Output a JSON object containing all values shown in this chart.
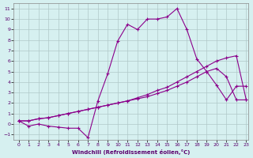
{
  "xlabel": "Windchill (Refroidissement éolien,°C)",
  "bg_color": "#d6f0f0",
  "grid_color": "#b0c8c8",
  "line_color": "#8b008b",
  "xlim": [
    -0.5,
    23.2
  ],
  "ylim": [
    -1.5,
    11.5
  ],
  "xticks": [
    0,
    1,
    2,
    3,
    4,
    5,
    6,
    7,
    8,
    9,
    10,
    11,
    12,
    13,
    14,
    15,
    16,
    17,
    18,
    19,
    20,
    21,
    22,
    23
  ],
  "yticks": [
    -1,
    0,
    1,
    2,
    3,
    4,
    5,
    6,
    7,
    8,
    9,
    10,
    11
  ],
  "line1_x": [
    0,
    1,
    2,
    3,
    4,
    5,
    6,
    7,
    8,
    9,
    10,
    11,
    12,
    13,
    14,
    15,
    16,
    17,
    18,
    19,
    20,
    21,
    22,
    23
  ],
  "line1_y": [
    0.3,
    -0.2,
    0.0,
    -0.2,
    -0.3,
    -0.4,
    -0.4,
    -1.3,
    2.2,
    4.8,
    7.9,
    9.5,
    9.0,
    10.0,
    10.0,
    10.2,
    11.0,
    9.0,
    6.2,
    5.0,
    3.7,
    2.3,
    3.6,
    3.6
  ],
  "line2_x": [
    0,
    1,
    2,
    3,
    4,
    5,
    6,
    7,
    8,
    9,
    10,
    11,
    12,
    13,
    14,
    15,
    16,
    17,
    18,
    19,
    20,
    21,
    22,
    23
  ],
  "line2_y": [
    0.3,
    0.3,
    0.5,
    0.6,
    0.8,
    1.0,
    1.2,
    1.4,
    1.6,
    1.8,
    2.0,
    2.2,
    2.5,
    2.8,
    3.2,
    3.5,
    4.0,
    4.5,
    5.0,
    5.5,
    6.0,
    6.3,
    6.5,
    2.3
  ],
  "line3_x": [
    0,
    1,
    2,
    3,
    4,
    5,
    6,
    7,
    8,
    9,
    10,
    11,
    12,
    13,
    14,
    15,
    16,
    17,
    18,
    19,
    20,
    21,
    22,
    23
  ],
  "line3_y": [
    0.3,
    0.3,
    0.5,
    0.6,
    0.8,
    1.0,
    1.2,
    1.4,
    1.6,
    1.8,
    2.0,
    2.2,
    2.4,
    2.6,
    2.9,
    3.2,
    3.6,
    4.0,
    4.5,
    5.0,
    5.3,
    4.5,
    2.3,
    2.3
  ]
}
